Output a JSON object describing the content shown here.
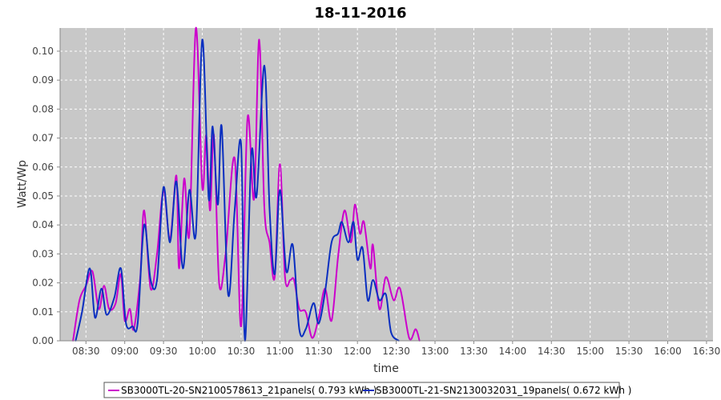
{
  "chart_data": {
    "type": "line",
    "title": "18-11-2016",
    "xlabel": "time",
    "ylabel": "Watt/Wp",
    "xlim": [
      "08:10",
      "16:35"
    ],
    "ylim": [
      0,
      0.108
    ],
    "x_ticks": [
      "08:30",
      "09:00",
      "09:30",
      "10:00",
      "10:30",
      "11:00",
      "11:30",
      "12:00",
      "12:30",
      "13:00",
      "13:30",
      "14:00",
      "14:30",
      "15:00",
      "15:30",
      "16:00",
      "16:30"
    ],
    "y_ticks": [
      "0.00",
      "0.01",
      "0.02",
      "0.03",
      "0.04",
      "0.05",
      "0.06",
      "0.07",
      "0.08",
      "0.09",
      "0.10"
    ],
    "grid": true,
    "legend_position": "bottom",
    "colors": {
      "plot_background": "#c8c8c8",
      "grid": "#ffffff"
    },
    "series": [
      {
        "name": "SB3000TL-20-SN2100578613_21panels( 0.793 kWh )",
        "color": "#cc00cc",
        "points": [
          [
            "08:20",
            0.0
          ],
          [
            "08:25",
            0.014
          ],
          [
            "08:30",
            0.019
          ],
          [
            "08:35",
            0.024
          ],
          [
            "08:40",
            0.011
          ],
          [
            "08:44",
            0.019
          ],
          [
            "08:48",
            0.011
          ],
          [
            "08:53",
            0.013
          ],
          [
            "08:57",
            0.023
          ],
          [
            "09:00",
            0.007
          ],
          [
            "09:04",
            0.011
          ],
          [
            "09:07",
            0.004
          ],
          [
            "09:12",
            0.022
          ],
          [
            "09:15",
            0.045
          ],
          [
            "09:20",
            0.018
          ],
          [
            "09:25",
            0.03
          ],
          [
            "09:30",
            0.052
          ],
          [
            "09:35",
            0.035
          ],
          [
            "09:40",
            0.057
          ],
          [
            "09:42",
            0.025
          ],
          [
            "09:46",
            0.056
          ],
          [
            "09:50",
            0.037
          ],
          [
            "09:55",
            0.108
          ],
          [
            "10:00",
            0.053
          ],
          [
            "10:03",
            0.071
          ],
          [
            "10:06",
            0.045
          ],
          [
            "10:09",
            0.071
          ],
          [
            "10:13",
            0.02
          ],
          [
            "10:18",
            0.03
          ],
          [
            "10:25",
            0.063
          ],
          [
            "10:30",
            0.005
          ],
          [
            "10:35",
            0.077
          ],
          [
            "10:40",
            0.049
          ],
          [
            "10:44",
            0.104
          ],
          [
            "10:48",
            0.046
          ],
          [
            "10:52",
            0.034
          ],
          [
            "10:56",
            0.022
          ],
          [
            "11:00",
            0.061
          ],
          [
            "11:04",
            0.022
          ],
          [
            "11:08",
            0.021
          ],
          [
            "11:11",
            0.021
          ],
          [
            "11:15",
            0.011
          ],
          [
            "11:20",
            0.01
          ],
          [
            "11:25",
            0.001
          ],
          [
            "11:30",
            0.008
          ],
          [
            "11:35",
            0.018
          ],
          [
            "11:40",
            0.007
          ],
          [
            "11:45",
            0.029
          ],
          [
            "11:50",
            0.045
          ],
          [
            "11:55",
            0.034
          ],
          [
            "11:58",
            0.047
          ],
          [
            "12:02",
            0.037
          ],
          [
            "12:05",
            0.041
          ],
          [
            "12:10",
            0.025
          ],
          [
            "12:12",
            0.033
          ],
          [
            "12:17",
            0.011
          ],
          [
            "12:22",
            0.022
          ],
          [
            "12:28",
            0.014
          ],
          [
            "12:33",
            0.018
          ],
          [
            "12:40",
            0.001
          ],
          [
            "12:45",
            0.004
          ],
          [
            "12:48",
            0.0
          ]
        ]
      },
      {
        "name": "SB3000TL-21-SN2130032031_19panels( 0.672 kWh )",
        "color": "#0a2fc0",
        "points": [
          [
            "08:22",
            0.0
          ],
          [
            "08:27",
            0.01
          ],
          [
            "08:33",
            0.025
          ],
          [
            "08:37",
            0.008
          ],
          [
            "08:42",
            0.018
          ],
          [
            "08:46",
            0.009
          ],
          [
            "08:52",
            0.015
          ],
          [
            "08:57",
            0.025
          ],
          [
            "09:01",
            0.006
          ],
          [
            "09:06",
            0.005
          ],
          [
            "09:10",
            0.006
          ],
          [
            "09:15",
            0.04
          ],
          [
            "09:20",
            0.021
          ],
          [
            "09:25",
            0.021
          ],
          [
            "09:30",
            0.053
          ],
          [
            "09:35",
            0.034
          ],
          [
            "09:40",
            0.055
          ],
          [
            "09:45",
            0.025
          ],
          [
            "09:50",
            0.052
          ],
          [
            "09:55",
            0.037
          ],
          [
            "10:00",
            0.104
          ],
          [
            "10:05",
            0.049
          ],
          [
            "10:08",
            0.074
          ],
          [
            "10:12",
            0.047
          ],
          [
            "10:15",
            0.074
          ],
          [
            "10:20",
            0.016
          ],
          [
            "10:25",
            0.045
          ],
          [
            "10:30",
            0.068
          ],
          [
            "10:33",
            0.0
          ],
          [
            "10:38",
            0.065
          ],
          [
            "10:42",
            0.05
          ],
          [
            "10:48",
            0.095
          ],
          [
            "10:52",
            0.046
          ],
          [
            "10:56",
            0.023
          ],
          [
            "11:00",
            0.052
          ],
          [
            "11:05",
            0.024
          ],
          [
            "11:10",
            0.033
          ],
          [
            "11:15",
            0.004
          ],
          [
            "11:20",
            0.004
          ],
          [
            "11:26",
            0.013
          ],
          [
            "11:30",
            0.006
          ],
          [
            "11:35",
            0.017
          ],
          [
            "11:40",
            0.034
          ],
          [
            "11:45",
            0.037
          ],
          [
            "11:48",
            0.041
          ],
          [
            "11:53",
            0.034
          ],
          [
            "11:57",
            0.041
          ],
          [
            "12:00",
            0.028
          ],
          [
            "12:04",
            0.032
          ],
          [
            "12:08",
            0.014
          ],
          [
            "12:12",
            0.021
          ],
          [
            "12:17",
            0.014
          ],
          [
            "12:22",
            0.016
          ],
          [
            "12:26",
            0.003
          ],
          [
            "12:32",
            0.0
          ]
        ]
      }
    ]
  }
}
